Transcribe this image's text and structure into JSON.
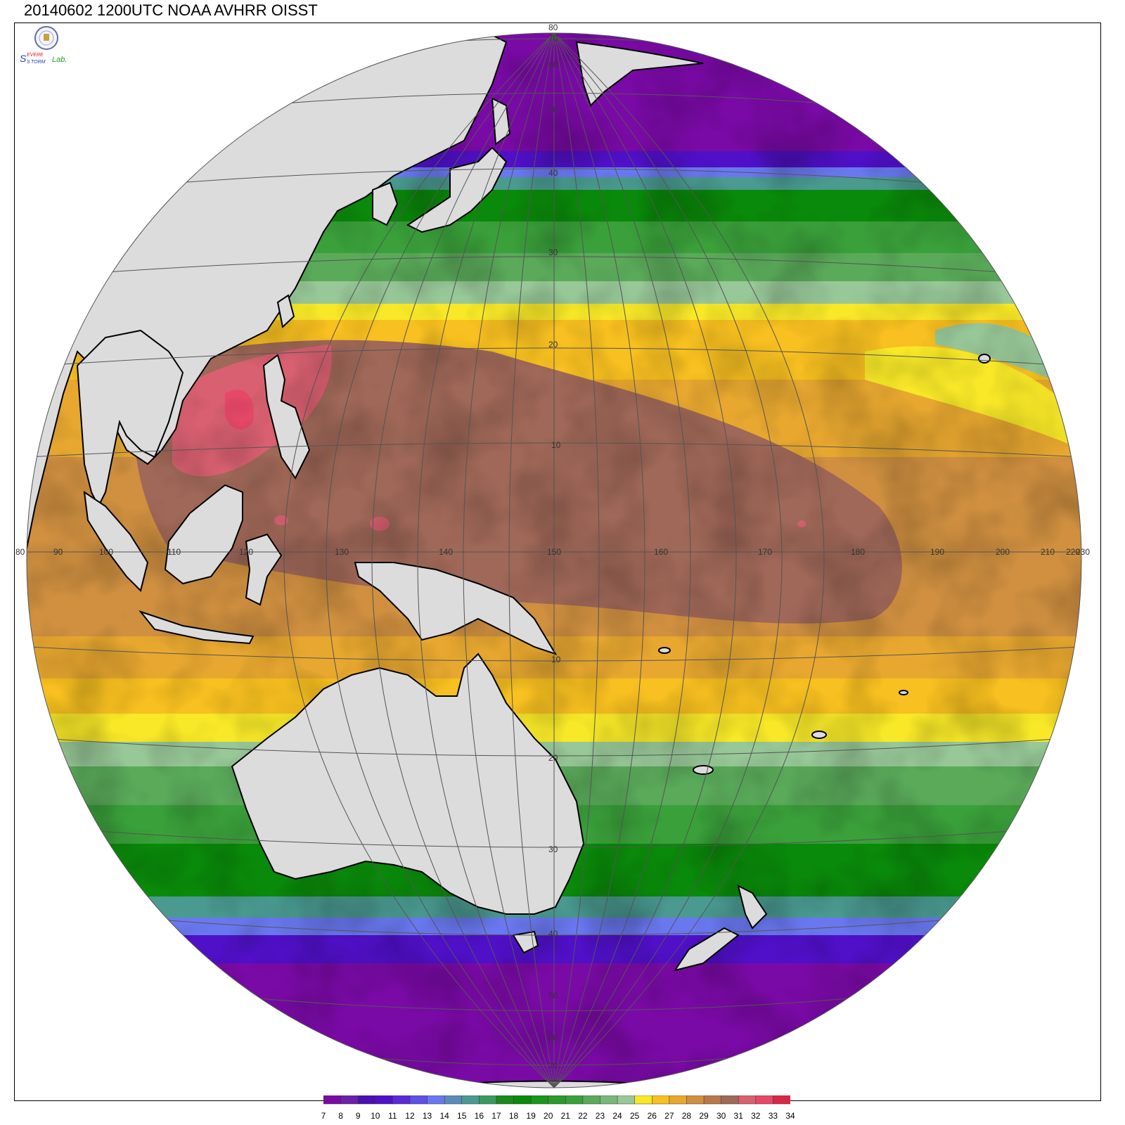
{
  "title": "20140602 1200UTC NOAA AVHRR OISST",
  "logo": {
    "icon": "severe-storm-lab-logo-icon",
    "text_s1": "S",
    "text_evere": "EVERE",
    "text_s2": "S",
    "text_torm": "TORM",
    "text_lab": "Lab."
  },
  "map": {
    "projection": "orthographic",
    "center_lon": 150,
    "center_lat": 0,
    "lon_labels": [
      "80",
      "90",
      "100",
      "110",
      "120",
      "130",
      "140",
      "150",
      "160",
      "170",
      "180",
      "190",
      "200",
      "210",
      "220",
      "230"
    ],
    "lat_labels_north": [
      "10",
      "20",
      "30",
      "40",
      "50",
      "60",
      "70",
      "80"
    ],
    "lat_labels_south": [
      "10",
      "20",
      "30",
      "40",
      "50",
      "60",
      "70"
    ],
    "colors": {
      "land": "#dcdcdc",
      "coast": "#000000",
      "grid": "#555555"
    }
  },
  "colorbar": {
    "labels": [
      "7",
      "8",
      "9",
      "10",
      "11",
      "12",
      "13",
      "14",
      "15",
      "16",
      "17",
      "18",
      "19",
      "20",
      "21",
      "22",
      "23",
      "24",
      "25",
      "26",
      "27",
      "28",
      "29",
      "30",
      "31",
      "32",
      "33",
      "34"
    ],
    "colors": [
      "#7a0aa6",
      "#6a20a8",
      "#4a10b0",
      "#5010c8",
      "#5a2ad8",
      "#5f50e8",
      "#6a78f0",
      "#5a8cb8",
      "#4a9a90",
      "#3a9a60",
      "#1a8a1a",
      "#0a8a0a",
      "#1a961a",
      "#2a9a2a",
      "#3aa03a",
      "#5aaa5a",
      "#78b878",
      "#98c898",
      "#f8e828",
      "#f8c020",
      "#e8a830",
      "#d09040",
      "#b87848",
      "#a06858",
      "#d86070",
      "#e84868",
      "#d82848"
    ]
  }
}
